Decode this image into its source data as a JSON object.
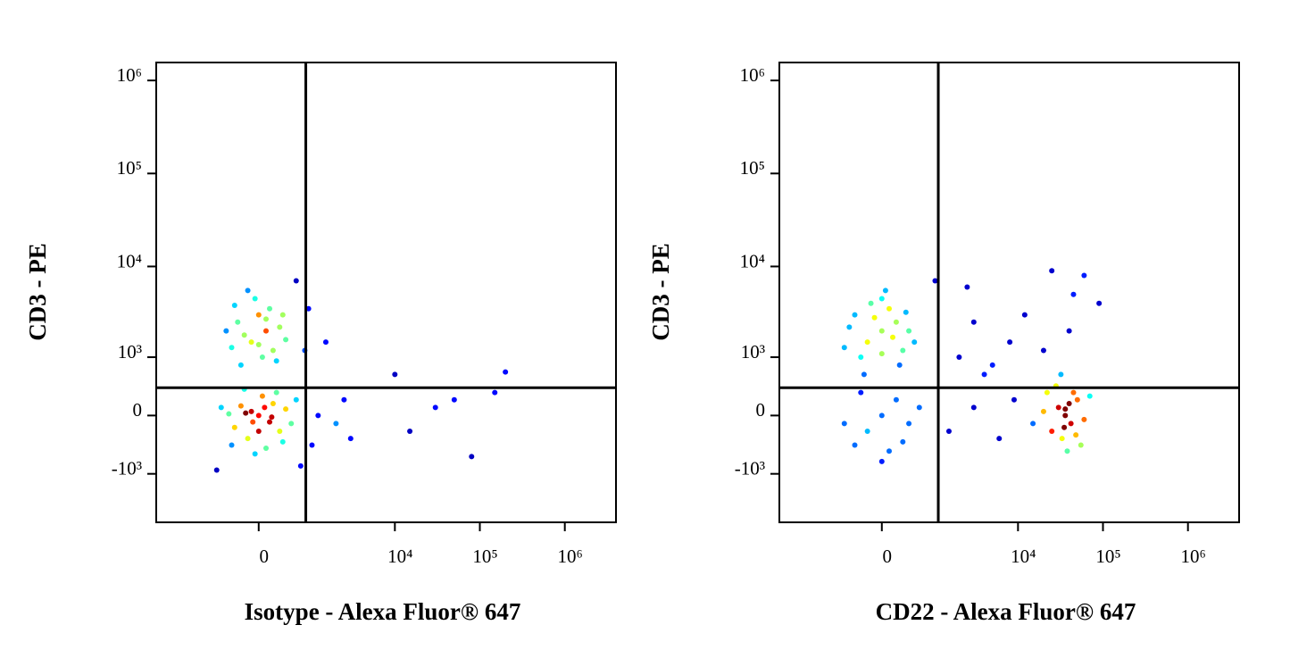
{
  "chart_data": [
    {
      "type": "scatter",
      "xlabel": "Isotype - Alexa Fluor® 647",
      "ylabel": "CD3 - PE",
      "xscale": "biexponential",
      "yscale": "biexponential",
      "colormap": "jet",
      "xlim": [
        -4000,
        4000000
      ],
      "ylim": [
        -3500,
        1560000
      ],
      "xticks": [
        0,
        {
          "value": 10000,
          "label": "10⁴"
        },
        {
          "value": 100000,
          "label": "10⁵"
        },
        {
          "value": 1000000,
          "label": "10⁶"
        }
      ],
      "yticks": [
        {
          "value": 1000000,
          "label": "10⁶"
        },
        {
          "value": 100000,
          "label": "10⁵"
        },
        {
          "value": 10000,
          "label": "10⁴"
        },
        {
          "value": 1000,
          "label": "10³"
        },
        0,
        {
          "value": -1000,
          "label": "-10³"
        }
      ],
      "gates": {
        "x": 826,
        "y": 372
      },
      "x": [
        0,
        -100,
        150,
        -250,
        300,
        50,
        -350,
        200,
        -150,
        400,
        -450,
        100,
        250,
        -200,
        500,
        -50,
        350,
        -400,
        600,
        -600,
        0,
        80,
        -80,
        180,
        -180,
        -100,
        100,
        -300,
        200,
        0,
        -200,
        300,
        -400,
        150,
        -50,
        250,
        -250,
        400,
        -500,
        50,
        -150,
        350,
        100,
        -350,
        0,
        1200,
        2000,
        2500,
        3000,
        10000,
        15000,
        30000,
        50000,
        80000,
        150000,
        200000,
        700,
        800,
        1500,
        600,
        900,
        1000,
        -700
      ],
      "values": [
        0,
        50,
        -80,
        120,
        -200,
        250,
        -150,
        150,
        -300,
        80,
        20,
        -450,
        300,
        350,
        -100,
        -550,
        -350,
        -400,
        200,
        100,
        -200,
        100,
        -80,
        -20,
        30,
        1500,
        2000,
        2500,
        1200,
        3000,
        1800,
        2200,
        1300,
        3500,
        4500,
        900,
        800,
        1600,
        2000,
        1000,
        5500,
        3000,
        2700,
        3800,
        1400,
        0,
        -100,
        200,
        -300,
        600,
        -200,
        100,
        200,
        -600,
        300,
        650,
        -800,
        1200,
        1500,
        7000,
        3500,
        -400,
        -900
      ]
    },
    {
      "type": "scatter",
      "xlabel": "CD22 - Alexa Fluor® 647",
      "ylabel": "CD3 - PE",
      "xscale": "biexponential",
      "yscale": "biexponential",
      "colormap": "jet",
      "xlim": [
        -4000,
        4000000
      ],
      "ylim": [
        -3500,
        1560000
      ],
      "xticks": [
        0,
        {
          "value": 10000,
          "label": "10⁴"
        },
        {
          "value": 100000,
          "label": "10⁵"
        },
        {
          "value": 1000000,
          "label": "10⁶"
        }
      ],
      "yticks": [
        {
          "value": 1000000,
          "label": "10⁶"
        },
        {
          "value": 100000,
          "label": "10⁵"
        },
        {
          "value": 10000,
          "label": "10⁴"
        },
        {
          "value": 1000,
          "label": "10³"
        },
        0,
        {
          "value": -1000,
          "label": "-10³"
        }
      ],
      "gates": {
        "x": 1100,
        "y": 372
      },
      "x": [
        0,
        -200,
        200,
        -400,
        300,
        100,
        -300,
        0,
        400,
        -500,
        150,
        -100,
        250,
        -250,
        500,
        -600,
        50,
        -150,
        350,
        0,
        0,
        -200,
        200,
        -400,
        400,
        100,
        -300,
        300,
        -600,
        600,
        0,
        36000,
        30000,
        42000,
        25000,
        50000,
        33000,
        45000,
        20000,
        60000,
        38000,
        28000,
        40000,
        35000,
        15000,
        70000,
        55000,
        32000,
        48000,
        22000,
        36000,
        2000,
        3000,
        5000,
        8000,
        12000,
        20000,
        40000,
        1500,
        3000,
        6000,
        9000,
        4000,
        60000,
        45000,
        90000,
        25000,
        1000,
        2500
      ],
      "values": [
        2000,
        1500,
        2500,
        3000,
        1200,
        3500,
        1000,
        4500,
        2000,
        2200,
        1700,
        2800,
        800,
        600,
        1500,
        1300,
        5500,
        4000,
        3200,
        1100,
        0,
        -200,
        200,
        -400,
        -100,
        -500,
        300,
        -350,
        -100,
        100,
        -700,
        0,
        100,
        -100,
        -200,
        200,
        -300,
        300,
        50,
        -50,
        -500,
        400,
        150,
        -150,
        -100,
        250,
        -400,
        600,
        -250,
        300,
        80,
        1000,
        2500,
        800,
        1500,
        3000,
        1200,
        2000,
        -200,
        100,
        -300,
        200,
        600,
        8000,
        5000,
        4000,
        9000,
        7000,
        6000
      ]
    }
  ]
}
